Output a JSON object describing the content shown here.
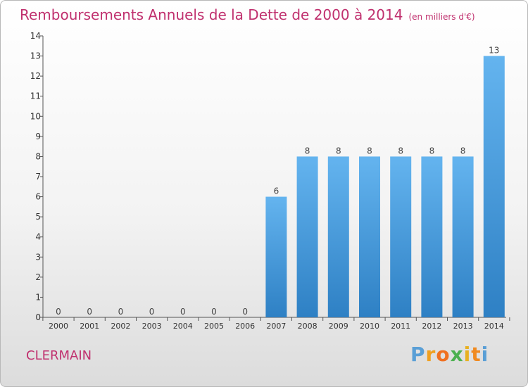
{
  "chart_data": {
    "type": "bar",
    "title": "Remboursements Annuels de la Dette de 2000 à 2014",
    "subtitle": "(en milliers d'€)",
    "categories": [
      "2000",
      "2001",
      "2002",
      "2003",
      "2004",
      "2005",
      "2006",
      "2007",
      "2008",
      "2009",
      "2010",
      "2011",
      "2012",
      "2013",
      "2014"
    ],
    "values": [
      0,
      0,
      0,
      0,
      0,
      0,
      0,
      6,
      8,
      8,
      8,
      8,
      8,
      8,
      13
    ],
    "ylim": [
      0,
      14
    ],
    "yticks": [
      0,
      1,
      2,
      3,
      4,
      5,
      6,
      7,
      8,
      9,
      10,
      11,
      12,
      13,
      14
    ],
    "xlabel": "",
    "ylabel": "",
    "grid": false,
    "bar_color": "#4a9ee0",
    "bar_color_light": "#64b4ef",
    "bar_color_dark": "#2e80c4"
  },
  "footer": {
    "commune": "CLERMAIN",
    "logo": {
      "letters": [
        "P",
        "r",
        "o",
        "x",
        "i",
        "t",
        "i"
      ],
      "colors": [
        "#5a9fd6",
        "#f0a020",
        "#f07020",
        "#4cb050",
        "#e8b020",
        "#f08a20",
        "#5a9fd6"
      ]
    }
  }
}
